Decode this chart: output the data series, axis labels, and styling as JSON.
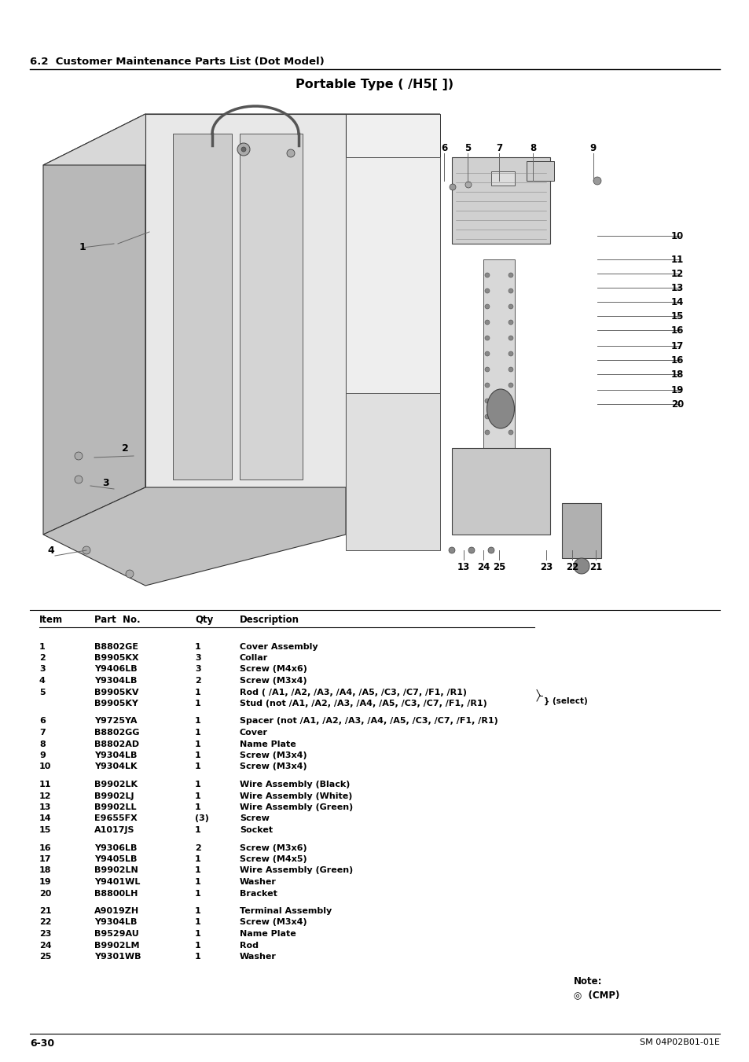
{
  "section_header": "6.2  Customer Maintenance Parts List (Dot Model)",
  "diagram_title": "Portable Type ( /H5[ ])",
  "footer_left": "6-30",
  "footer_right": "SM 04P02B01-01E",
  "table_headers": [
    "Item",
    "Part No.",
    "Qty",
    "Description"
  ],
  "table_rows": [
    [
      "1",
      "B8802GE",
      "1",
      "Cover Assembly"
    ],
    [
      "2",
      "B9905KX",
      "3",
      "Collar"
    ],
    [
      "3",
      "Y9406LB",
      "3",
      "Screw (M4x6)"
    ],
    [
      "4",
      "Y9304LB",
      "2",
      "Screw (M3x4)"
    ],
    [
      "5",
      "B9905KV",
      "1",
      "Rod ( /A1, /A2, /A3, /A4, /A5, /C3, /C7, /F1, /R1)"
    ],
    [
      "",
      "B9905KY",
      "1",
      "Stud (not /A1, /A2, /A3, /A4, /A5, /C3, /C7, /F1, /R1)"
    ],
    [
      "6",
      "Y9725YA",
      "1",
      "Spacer (not /A1, /A2, /A3, /A4, /A5, /C3, /C7, /F1, /R1)"
    ],
    [
      "7",
      "B8802GG",
      "1",
      "Cover"
    ],
    [
      "8",
      "B8802AD",
      "1",
      "Name Plate"
    ],
    [
      "9",
      "Y9304LB",
      "1",
      "Screw (M3x4)"
    ],
    [
      "10",
      "Y9304LK",
      "1",
      "Screw (M3x4)"
    ],
    [
      "11",
      "B9902LK",
      "1",
      "Wire Assembly (Black)"
    ],
    [
      "12",
      "B9902LJ",
      "1",
      "Wire Assembly (White)"
    ],
    [
      "13",
      "B9902LL",
      "1",
      "Wire Assembly (Green)"
    ],
    [
      "14",
      "E9655FX",
      "(3)",
      "Screw"
    ],
    [
      "15",
      "A1017JS",
      "1",
      "Socket"
    ],
    [
      "16",
      "Y9306LB",
      "2",
      "Screw (M3x6)"
    ],
    [
      "17",
      "Y9405LB",
      "1",
      "Screw (M4x5)"
    ],
    [
      "18",
      "B9902LN",
      "1",
      "Wire Assembly (Green)"
    ],
    [
      "19",
      "Y9401WL",
      "1",
      "Washer"
    ],
    [
      "20",
      "B8800LH",
      "1",
      "Bracket"
    ],
    [
      "21",
      "A9019ZH",
      "1",
      "Terminal Assembly"
    ],
    [
      "22",
      "Y9304LB",
      "1",
      "Screw (M3x4)"
    ],
    [
      "23",
      "B9529AU",
      "1",
      "Name Plate"
    ],
    [
      "24",
      "B9902LM",
      "1",
      "Rod"
    ],
    [
      "25",
      "Y9301WB",
      "1",
      "Washer"
    ]
  ],
  "note_label": "Note:",
  "note_symbol": "◎  (CMP)",
  "bg_color": "#ffffff",
  "text_color": "#000000"
}
